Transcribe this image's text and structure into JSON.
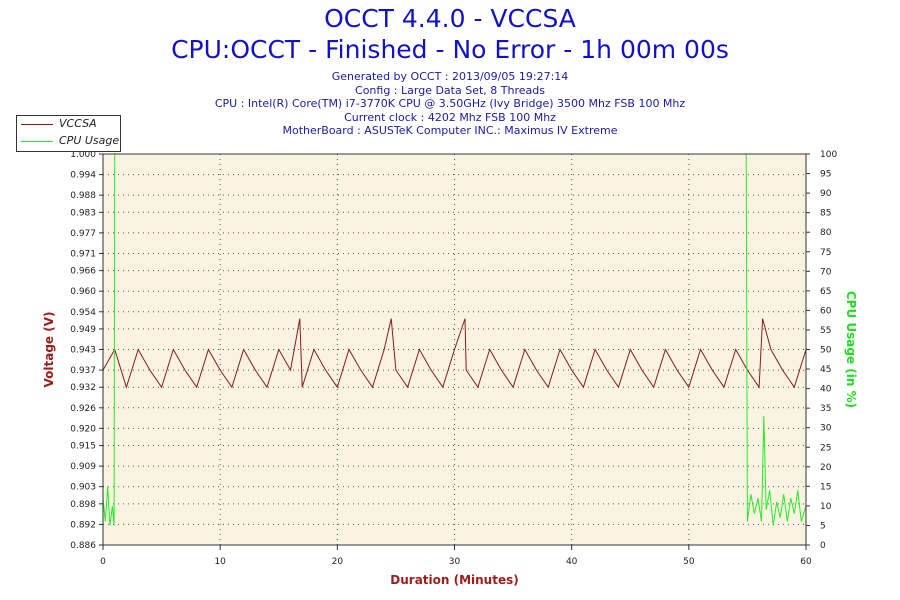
{
  "header": {
    "title": "OCCT 4.4.0 - VCCSA",
    "subtitle": "CPU:OCCT - Finished - No Error - 1h 00m 00s",
    "info_lines": [
      "Generated by OCCT : 2013/09/05 19:27:14",
      "Config : Large Data Set, 8 Threads",
      "CPU : Intel(R) Core(TM) i7-3770K CPU @ 3.50GHz (Ivy Bridge) 3500 Mhz FSB 100 Mhz",
      "Current clock : 4202 Mhz FSB 100 Mhz",
      "MotherBoard : ASUSTeK Computer INC.: Maximus IV Extreme"
    ]
  },
  "colors": {
    "voltage": "#8b1a1a",
    "cpu": "#22ee22",
    "plot_bg": "#fbf3e2",
    "grid": "#555555",
    "axis_label_left": "#a01c1c",
    "axis_label_right": "#22dd22"
  },
  "legend": {
    "placement": "top-left",
    "entries": [
      "VCCSA",
      "CPU Usage"
    ]
  },
  "chart_data": {
    "type": "line",
    "xlabel": "Duration (Minutes)",
    "ylabel": "Voltage (V)",
    "y2label": "CPU Usage (in %)",
    "xlim": [
      0,
      60
    ],
    "ylim": [
      0.886,
      1.0
    ],
    "y2lim": [
      0,
      100
    ],
    "grid": true,
    "x_ticks": [
      "0",
      "10",
      "20",
      "30",
      "40",
      "50",
      "60"
    ],
    "y_ticks": [
      "0.886",
      "0.892",
      "0.898",
      "0.903",
      "0.909",
      "0.915",
      "0.920",
      "0.926",
      "0.932",
      "0.937",
      "0.943",
      "0.949",
      "0.954",
      "0.960",
      "0.966",
      "0.971",
      "0.977",
      "0.983",
      "0.988",
      "0.994",
      "1.000"
    ],
    "y2_ticks": [
      "0",
      "5",
      "10",
      "15",
      "20",
      "25",
      "30",
      "35",
      "40",
      "45",
      "50",
      "55",
      "60",
      "65",
      "70",
      "75",
      "80",
      "85",
      "90",
      "95",
      "100"
    ],
    "series": [
      {
        "name": "VCCSA",
        "axis": "left",
        "x": [
          0,
          1,
          2,
          3,
          4,
          5,
          6,
          7,
          8,
          9,
          10,
          11,
          12,
          13,
          14,
          15,
          16,
          16.8,
          17,
          18,
          19,
          20,
          21,
          22,
          23,
          24,
          24.6,
          25,
          26,
          27,
          28,
          29,
          30,
          30.9,
          31,
          32,
          33,
          34,
          35,
          36,
          37,
          38,
          39,
          40,
          41,
          42,
          43,
          44,
          45,
          46,
          47,
          48,
          49,
          50,
          51,
          52,
          53,
          54,
          55,
          56,
          56.3,
          57,
          58,
          59,
          60
        ],
        "y": [
          0.937,
          0.943,
          0.932,
          0.943,
          0.937,
          0.932,
          0.943,
          0.937,
          0.932,
          0.943,
          0.937,
          0.932,
          0.943,
          0.937,
          0.932,
          0.943,
          0.937,
          0.952,
          0.932,
          0.943,
          0.937,
          0.932,
          0.943,
          0.937,
          0.932,
          0.943,
          0.952,
          0.937,
          0.932,
          0.943,
          0.937,
          0.932,
          0.943,
          0.952,
          0.937,
          0.932,
          0.943,
          0.937,
          0.932,
          0.943,
          0.937,
          0.932,
          0.943,
          0.937,
          0.932,
          0.943,
          0.937,
          0.932,
          0.943,
          0.937,
          0.932,
          0.943,
          0.937,
          0.932,
          0.943,
          0.937,
          0.932,
          0.943,
          0.937,
          0.932,
          0.952,
          0.943,
          0.937,
          0.932,
          0.943
        ]
      },
      {
        "name": "CPU Usage",
        "axis": "right",
        "x": [
          0,
          0.2,
          0.4,
          0.6,
          0.8,
          0.95,
          1.0,
          54.9,
          55.0,
          55.3,
          55.6,
          55.9,
          56.2,
          56.4,
          56.6,
          56.9,
          57.2,
          57.5,
          57.8,
          58.1,
          58.4,
          58.7,
          59.0,
          59.3,
          59.6,
          60
        ],
        "y": [
          12,
          6,
          15,
          5,
          10,
          5,
          100,
          100,
          6,
          13,
          8,
          12,
          6,
          33,
          9,
          14,
          5,
          11,
          7,
          13,
          6,
          12,
          8,
          14,
          6,
          10
        ]
      }
    ]
  }
}
